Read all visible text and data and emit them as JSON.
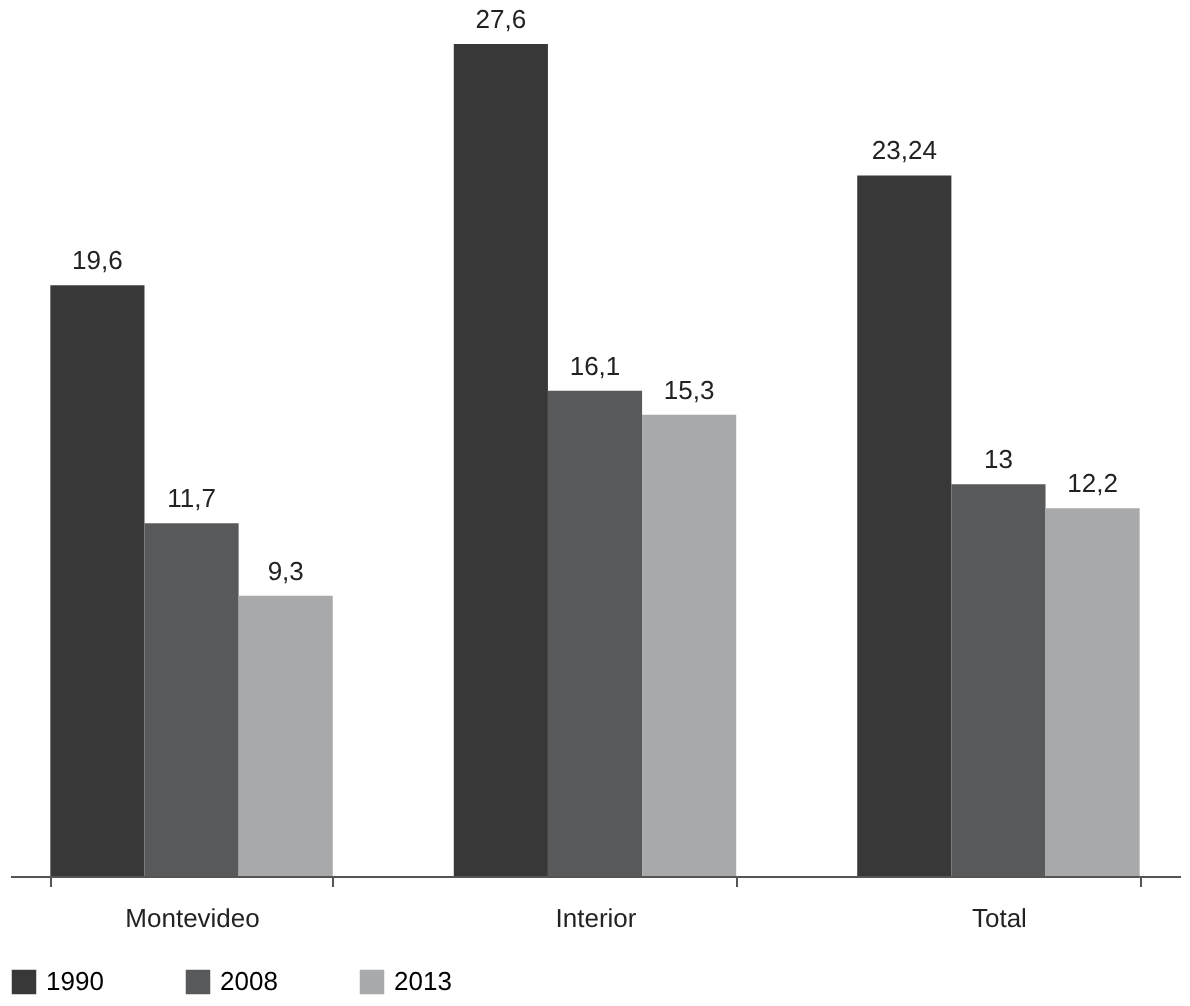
{
  "chart_data": {
    "type": "bar",
    "categories": [
      "Montevideo",
      "Interior",
      "Total"
    ],
    "series": [
      {
        "name": "1990",
        "color": "#383838",
        "values": [
          19.6,
          27.6,
          23.24
        ],
        "value_labels": [
          "19,6",
          "27,6",
          "23,24"
        ]
      },
      {
        "name": "2008",
        "color": "#58595b",
        "values": [
          11.7,
          16.1,
          13
        ],
        "value_labels": [
          "11,7",
          "16,1",
          "13"
        ]
      },
      {
        "name": "2013",
        "color": "#a7a9ab",
        "values": [
          9.3,
          15.3,
          12.2
        ],
        "value_labels": [
          "9,3",
          "15,3",
          "12,2"
        ]
      }
    ],
    "legend": "bottom",
    "grid": false,
    "tick_labels": "x"
  }
}
